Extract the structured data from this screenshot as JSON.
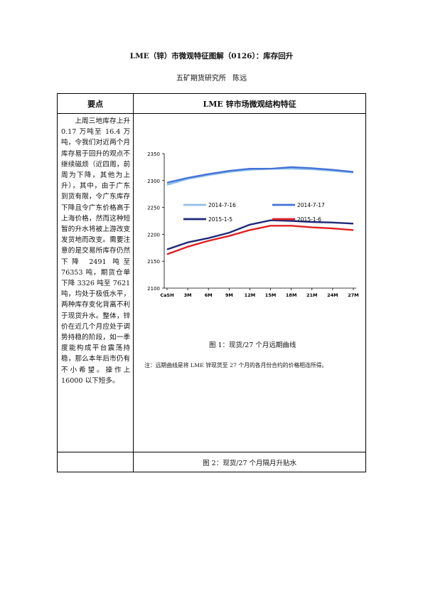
{
  "doc": {
    "title": "LME（锌）市微观特征图解（0126）：库存回升",
    "author": "五矿期货研究所  陈远"
  },
  "table": {
    "header_left": "要点",
    "header_right": "LME 锌市场微观结构特征",
    "left_text": "上周三地库存上升 0.17 万吨至 16.4 万吨，令我们对近两个月库存易于回升的观点不继续磁烦（近四周，前周为下降，其他为上升），其中，由于广东到货有限，令广东库存下降且令广东价格高于上海价格，然而这种短暂的升水将被上游改变发货地而改变。需要注意的是交易所库存仍然下降 2491 吨至 76353 吨，期货仓单下降 3326 吨至 7621 吨，均处于极低水平，两种库存变化背离不利于现货升水。整体，锌价在近几个月应处于调势持稳的阶段，如一季度能构成平台震荡持稳，那么本年后市仍有不小希望。操作上 16000 以下短多。",
    "fig1_caption": "图 1：现货/27 个月远期曲线",
    "fig1_note": "注：远期曲线是将 LME 锌现货至 27 个月的各月份合约的价格相连所得。",
    "fig2_caption": "图 2：现货/27 个月隔月升贴水"
  },
  "chart_data": {
    "type": "line",
    "categories": [
      "CaSH",
      "3M",
      "6M",
      "9M",
      "12M",
      "15M",
      "18M",
      "21M",
      "24M",
      "27M"
    ],
    "ylim": [
      2100,
      2350
    ],
    "yticks": [
      2100,
      2150,
      2200,
      2250,
      2300,
      2350
    ],
    "legend_placement": "inside-upper",
    "series": [
      {
        "name": "2014-7-16",
        "color": "#8ec0ea",
        "values": [
          2292,
          2303,
          2310,
          2316,
          2320,
          2322,
          2322,
          2321,
          2318,
          2315
        ]
      },
      {
        "name": "2014-7-17",
        "color": "#4472d8",
        "values": [
          2296,
          2305,
          2312,
          2318,
          2322,
          2322,
          2325,
          2323,
          2320,
          2316
        ]
      },
      {
        "name": "2015-1-5",
        "color": "#1f2a7a",
        "values": [
          2172,
          2185,
          2193,
          2203,
          2218,
          2226,
          2225,
          2223,
          2222,
          2220
        ]
      },
      {
        "name": "2015-1-6",
        "color": "#e02020",
        "values": [
          2163,
          2177,
          2188,
          2197,
          2208,
          2216,
          2216,
          2213,
          2211,
          2208
        ]
      }
    ]
  }
}
